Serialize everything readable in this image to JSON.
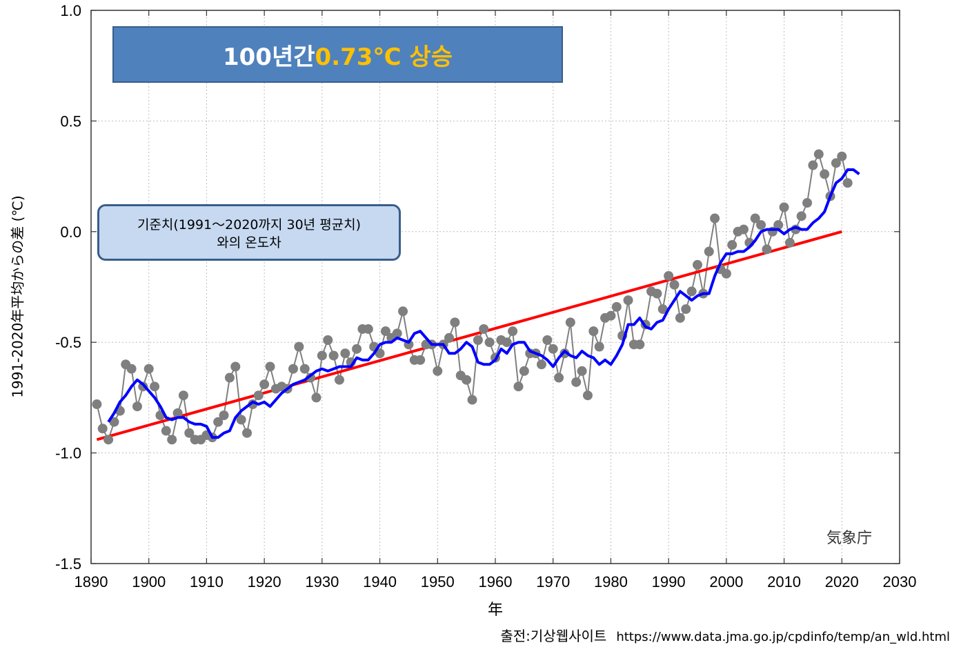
{
  "chart_data": {
    "type": "line",
    "title_parts": [
      "100년간 ",
      "0.73℃ 상승"
    ],
    "annotation_lines": [
      "기준치(1991～2020까지 30년 평균치)",
      "와의 온도차"
    ],
    "agency": "気象庁",
    "xlabel": "年",
    "ylabel": "1991-2020年平均からの差 (℃)",
    "source_label": "출전:기상웹사이트",
    "source_url": "https://www.data.jma.go.jp/cpdinfo/temp/an_wld.html",
    "xlim": [
      1890,
      2030
    ],
    "ylim": [
      -1.5,
      1.0
    ],
    "x_ticks": [
      "1890",
      "1900",
      "1910",
      "1920",
      "1930",
      "1940",
      "1950",
      "1960",
      "1970",
      "1980",
      "1990",
      "2000",
      "2010",
      "2020",
      "2030"
    ],
    "y_ticks": [
      "1.0",
      "0.5",
      "0.0",
      "-0.5",
      "-1.0",
      "-1.5"
    ],
    "grid": true,
    "colors": {
      "annual": "#7f7f7f",
      "moving_average": "#0000ff",
      "trend": "#ff0000",
      "title_box": "#4f81bd",
      "title_highlight": "#ffc000",
      "note_box": "#c6d9f1"
    },
    "series": [
      {
        "x_start": 1891,
        "values": [
          -0.78,
          -0.89,
          -0.94,
          -0.86,
          -0.81,
          -0.6,
          -0.62,
          -0.79,
          -0.7,
          -0.62,
          -0.7,
          -0.83,
          -0.9,
          -0.94,
          -0.82,
          -0.74,
          -0.91,
          -0.94,
          -0.94,
          -0.92,
          -0.93,
          -0.86,
          -0.83,
          -0.66,
          -0.61,
          -0.85,
          -0.91,
          -0.78,
          -0.74,
          -0.69,
          -0.61,
          -0.71,
          -0.7,
          -0.71,
          -0.62,
          -0.52,
          -0.62,
          -0.66,
          -0.75,
          -0.56,
          -0.49,
          -0.56,
          -0.67,
          -0.55,
          -0.59,
          -0.53,
          -0.44,
          -0.44,
          -0.52,
          -0.55,
          -0.45,
          -0.48,
          -0.46,
          -0.36,
          -0.51,
          -0.58,
          -0.58,
          -0.51,
          -0.51,
          -0.63,
          -0.51,
          -0.48,
          -0.41,
          -0.65,
          -0.67,
          -0.76,
          -0.49,
          -0.44,
          -0.5,
          -0.57,
          -0.49,
          -0.5,
          -0.45,
          -0.7,
          -0.63,
          -0.55,
          -0.55,
          -0.6,
          -0.49,
          -0.53,
          -0.66,
          -0.55,
          -0.41,
          -0.68,
          -0.63,
          -0.74,
          -0.45,
          -0.52,
          -0.39,
          -0.38,
          -0.34,
          -0.47,
          -0.31,
          -0.51,
          -0.51,
          -0.42,
          -0.27,
          -0.28,
          -0.35,
          -0.2,
          -0.24,
          -0.39,
          -0.35,
          -0.27,
          -0.15,
          -0.28,
          -0.09,
          0.06,
          -0.17,
          -0.19,
          -0.06,
          0.0,
          0.01,
          -0.05,
          0.06,
          0.03,
          -0.08,
          0.0,
          0.03,
          0.11,
          -0.05,
          0.01,
          0.07,
          0.13,
          0.3,
          0.35,
          0.26,
          0.16,
          0.31,
          0.34,
          0.22
        ]
      },
      {
        "x_start": 1893,
        "values": [
          -0.86,
          -0.82,
          -0.77,
          -0.74,
          -0.7,
          -0.67,
          -0.69,
          -0.72,
          -0.75,
          -0.79,
          -0.84,
          -0.85,
          -0.84,
          -0.84,
          -0.86,
          -0.87,
          -0.87,
          -0.88,
          -0.93,
          -0.93,
          -0.91,
          -0.9,
          -0.84,
          -0.81,
          -0.79,
          -0.77,
          -0.78,
          -0.77,
          -0.79,
          -0.76,
          -0.73,
          -0.71,
          -0.69,
          -0.68,
          -0.67,
          -0.65,
          -0.63,
          -0.62,
          -0.63,
          -0.62,
          -0.61,
          -0.61,
          -0.61,
          -0.57,
          -0.58,
          -0.58,
          -0.55,
          -0.51,
          -0.5,
          -0.5,
          -0.48,
          -0.49,
          -0.5,
          -0.46,
          -0.45,
          -0.48,
          -0.51,
          -0.51,
          -0.51,
          -0.55,
          -0.55,
          -0.53,
          -0.5,
          -0.52,
          -0.59,
          -0.6,
          -0.6,
          -0.58,
          -0.53,
          -0.55,
          -0.51,
          -0.5,
          -0.5,
          -0.54,
          -0.55,
          -0.56,
          -0.58,
          -0.61,
          -0.57,
          -0.54,
          -0.56,
          -0.57,
          -0.54,
          -0.56,
          -0.57,
          -0.6,
          -0.58,
          -0.6,
          -0.56,
          -0.51,
          -0.42,
          -0.42,
          -0.39,
          -0.43,
          -0.44,
          -0.41,
          -0.4,
          -0.35,
          -0.31,
          -0.27,
          -0.29,
          -0.31,
          -0.29,
          -0.28,
          -0.28,
          -0.2,
          -0.14,
          -0.1,
          -0.1,
          -0.09,
          -0.09,
          -0.07,
          -0.04,
          0.0,
          0.01,
          0.01,
          0.01,
          -0.01,
          0.01,
          0.02,
          0.01,
          0.01,
          0.04,
          0.06,
          0.09,
          0.16,
          0.22,
          0.24,
          0.28,
          0.28,
          0.26
        ]
      },
      {
        "x_points": [
          1891,
          2020
        ],
        "values": [
          -0.94,
          0.0
        ]
      }
    ]
  }
}
